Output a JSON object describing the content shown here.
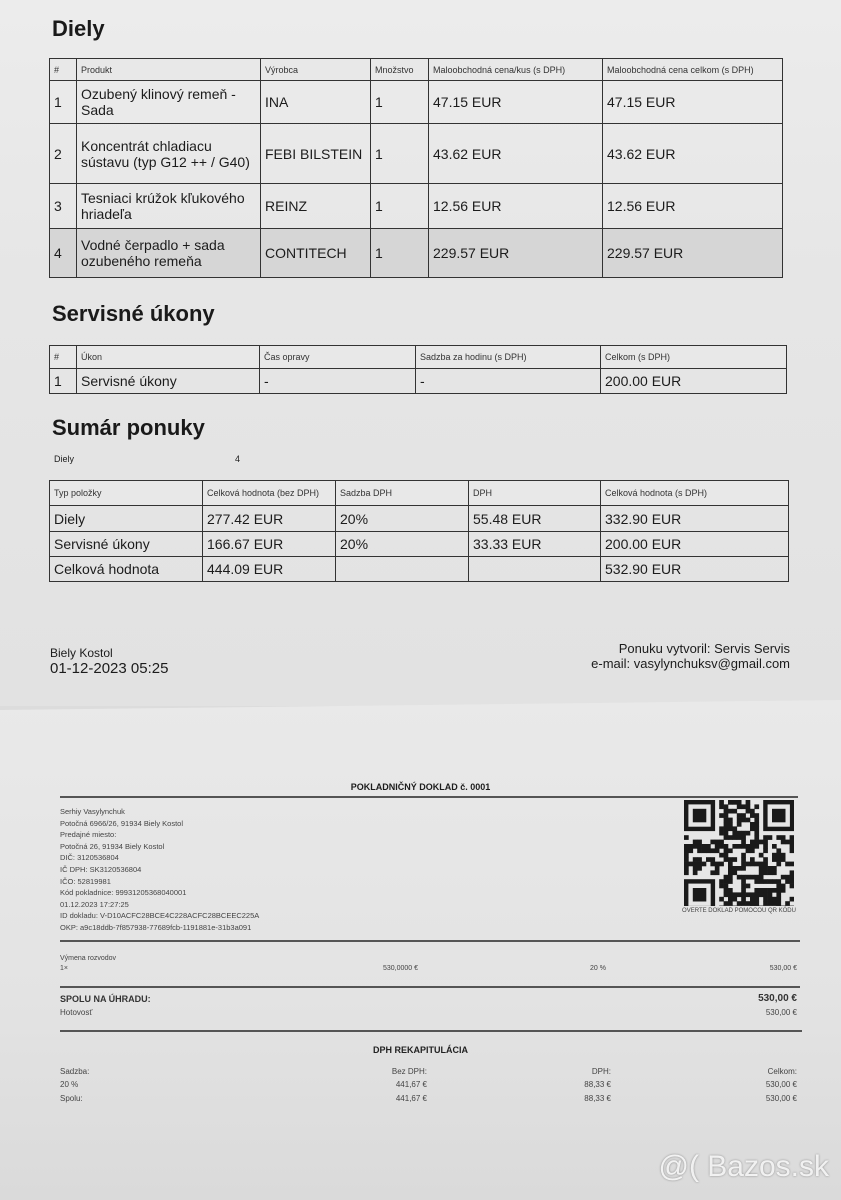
{
  "parts": {
    "title": "Diely",
    "headers": [
      "#",
      "Produkt",
      "Výrobca",
      "Množstvo",
      "Maloobchodná cena/kus (s DPH)",
      "Maloobchodná cena celkom (s DPH)"
    ],
    "rows": [
      {
        "n": "1",
        "product": "Ozubený klinový remeň - Sada",
        "maker": "INA",
        "qty": "1",
        "unit": "47.15 EUR",
        "total": "47.15 EUR"
      },
      {
        "n": "2",
        "product": "Koncentrát chladiacu sústavu (typ G12 ++ / G40)",
        "maker": "FEBI BILSTEIN",
        "qty": "1",
        "unit": "43.62 EUR",
        "total": "43.62 EUR"
      },
      {
        "n": "3",
        "product": "Tesniaci krúžok kľukového hriadeľa",
        "maker": "REINZ",
        "qty": "1",
        "unit": "12.56 EUR",
        "total": "12.56 EUR"
      },
      {
        "n": "4",
        "product": "Vodné čerpadlo + sada ozubeného remeňa",
        "maker": "CONTITECH",
        "qty": "1",
        "unit": "229.57 EUR",
        "total": "229.57 EUR"
      }
    ]
  },
  "services": {
    "title": "Servisné úkony",
    "headers": [
      "#",
      "Úkon",
      "Čas opravy",
      "Sadzba za hodinu (s DPH)",
      "Celkom (s DPH)"
    ],
    "rows": [
      {
        "n": "1",
        "task": "Servisné úkony",
        "time": "-",
        "rate": "-",
        "total": "200.00 EUR"
      }
    ]
  },
  "summary": {
    "title": "Sumár ponuky",
    "parts_label": "Diely",
    "parts_count": "4",
    "headers": [
      "Typ položky",
      "Celková hodnota (bez DPH)",
      "Sadzba DPH",
      "DPH",
      "Celková hodnota (s DPH)"
    ],
    "rows": [
      {
        "type": "Diely",
        "net": "277.42 EUR",
        "rate": "20%",
        "vat": "55.48 EUR",
        "gross": "332.90 EUR"
      },
      {
        "type": "Servisné úkony",
        "net": "166.67 EUR",
        "rate": "20%",
        "vat": "33.33 EUR",
        "gross": "200.00 EUR"
      },
      {
        "type": "Celková hodnota",
        "net": "444.09 EUR",
        "rate": "",
        "vat": "",
        "gross": "532.90 EUR"
      }
    ]
  },
  "footer": {
    "place": "Biely Kostol",
    "datetime": "01-12-2023 05:25",
    "created_by": "Ponuku vytvoril: Servis Servis",
    "email": "e-mail: vasylynchuksv@gmail.com"
  },
  "receipt": {
    "title": "POKLADNIČNÝ DOKLAD č. 0001",
    "info": [
      "Serhiy Vasylynchuk",
      "Potočná 6966/26, 91934 Biely Kostol",
      "Predajné miesto:",
      "Potočná 26, 91934 Biely Kostol",
      "DIČ: 3120536804",
      "IČ DPH: SK3120536804",
      "IČO: 52819981",
      "Kód pokladnice: 99931205368040001",
      "01.12.2023 17:27:25",
      "ID dokladu: V-D10ACFC28BCE4C228ACFC28BCEEC225A",
      "OKP: a9c18ddb-7f857938-77689fcb-1191881e-31b3a091"
    ],
    "qr_caption": "OVERTE DOKLAD POMOCOU QR KÓDU",
    "item": {
      "name": "Výmena rozvodov",
      "qty": "1×",
      "unit_price": "530,0000 €",
      "vat": "20 %",
      "total": "530,00 €"
    },
    "total_label": "SPOLU NA ÚHRADU:",
    "total": "530,00 €",
    "payment_label": "Hotovosť",
    "payment": "530,00 €",
    "vat_title": "DPH REKAPITULÁCIA",
    "vat_headers": [
      "Sadzba:",
      "Bez DPH:",
      "DPH:",
      "Celkom:"
    ],
    "vat_rows": [
      [
        "20 %",
        "441,67 €",
        "88,33 €",
        "530,00 €"
      ],
      [
        "Spolu:",
        "441,67 €",
        "88,33 €",
        "530,00 €"
      ]
    ]
  },
  "watermark": "@( Bazos.sk"
}
